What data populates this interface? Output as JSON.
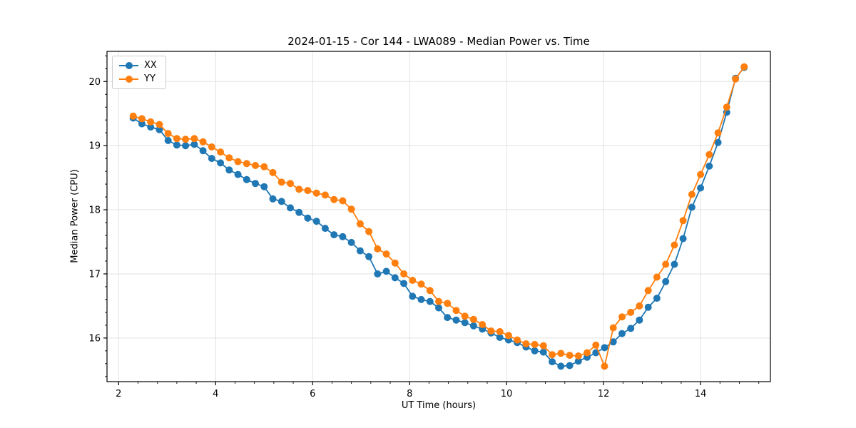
{
  "figure": {
    "title": "2024-01-15 - Cor 144 - LWA089 - Median Power vs. Time",
    "background_color": "#ffffff"
  },
  "chart_data": {
    "type": "line",
    "title": "2024-01-15 - Cor 144 - LWA089 - Median Power vs. Time",
    "xlabel": "UT Time (hours)",
    "ylabel": "Median Power (CPU)",
    "grid": true,
    "grid_color": "#e2e2e2",
    "spine_color": "#000000",
    "legend_position": "upper left",
    "x_axis": {
      "ticks": [
        2,
        4,
        6,
        8,
        10,
        12,
        14
      ],
      "minor_step": 0.4,
      "range": [
        1.76,
        15.44
      ]
    },
    "y_axis": {
      "ticks": [
        16,
        17,
        18,
        19,
        20
      ],
      "minor_step": 0.2,
      "range": [
        15.32,
        20.47
      ]
    },
    "x": [
      2.3,
      2.48,
      2.66,
      2.84,
      3.02,
      3.2,
      3.38,
      3.56,
      3.74,
      3.92,
      4.1,
      4.28,
      4.46,
      4.64,
      4.82,
      5.0,
      5.18,
      5.36,
      5.54,
      5.72,
      5.9,
      6.08,
      6.26,
      6.44,
      6.62,
      6.8,
      6.98,
      7.16,
      7.34,
      7.52,
      7.7,
      7.88,
      8.06,
      8.24,
      8.42,
      8.6,
      8.78,
      8.96,
      9.14,
      9.32,
      9.5,
      9.68,
      9.86,
      10.04,
      10.22,
      10.4,
      10.58,
      10.76,
      10.94,
      11.12,
      11.3,
      11.48,
      11.66,
      11.84,
      12.02,
      12.2,
      12.38,
      12.56,
      12.74,
      12.92,
      13.1,
      13.28,
      13.46,
      13.64,
      13.82,
      14.0,
      14.18,
      14.36,
      14.54,
      14.72,
      14.9
    ],
    "series": [
      {
        "name": "XX",
        "color": "#1f77b4",
        "marker": "circle",
        "y": [
          19.43,
          19.34,
          19.29,
          19.25,
          19.08,
          19.01,
          19.0,
          19.02,
          18.92,
          18.8,
          18.73,
          18.62,
          18.55,
          18.47,
          18.41,
          18.36,
          18.17,
          18.13,
          18.03,
          17.96,
          17.87,
          17.82,
          17.71,
          17.61,
          17.58,
          17.49,
          17.36,
          17.27,
          17.0,
          17.04,
          16.94,
          16.85,
          16.65,
          16.6,
          16.57,
          16.47,
          16.32,
          16.28,
          16.24,
          16.19,
          16.14,
          16.08,
          16.01,
          15.97,
          15.93,
          15.86,
          15.8,
          15.78,
          15.63,
          15.56,
          15.57,
          15.64,
          15.7,
          15.77,
          15.85,
          15.94,
          16.07,
          16.15,
          16.28,
          16.48,
          16.62,
          16.88,
          17.15,
          17.55,
          18.04,
          18.34,
          18.68,
          19.05,
          19.52,
          20.05,
          20.22
        ]
      },
      {
        "name": "YY",
        "color": "#ff7f0e",
        "marker": "circle",
        "y": [
          19.46,
          19.42,
          19.37,
          19.33,
          19.19,
          19.11,
          19.1,
          19.11,
          19.06,
          18.98,
          18.9,
          18.81,
          18.75,
          18.72,
          18.69,
          18.67,
          18.58,
          18.43,
          18.41,
          18.32,
          18.3,
          18.26,
          18.23,
          18.16,
          18.14,
          18.01,
          17.78,
          17.66,
          17.39,
          17.31,
          17.17,
          17.0,
          16.9,
          16.84,
          16.74,
          16.57,
          16.54,
          16.43,
          16.34,
          16.29,
          16.21,
          16.11,
          16.1,
          16.04,
          15.97,
          15.91,
          15.9,
          15.88,
          15.74,
          15.76,
          15.73,
          15.72,
          15.77,
          15.89,
          15.56,
          16.16,
          16.33,
          16.4,
          16.5,
          16.74,
          16.95,
          17.15,
          17.45,
          17.83,
          18.24,
          18.55,
          18.86,
          19.2,
          19.6,
          20.04,
          20.23
        ]
      }
    ]
  }
}
